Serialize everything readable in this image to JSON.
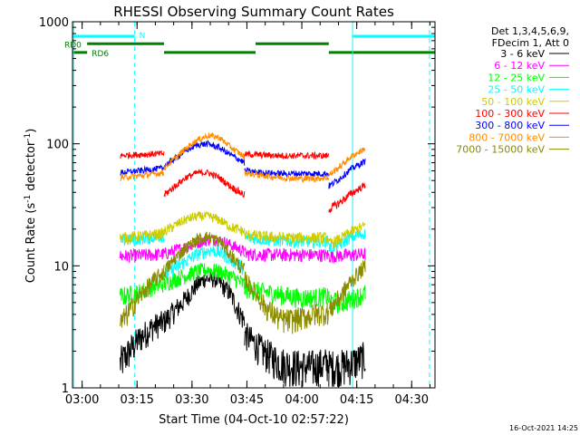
{
  "chart_data": {
    "type": "line",
    "title": "RHESSI Observing Summary Count Rates",
    "xlabel": "Start Time (04-Oct-10 02:57:22)",
    "ylabel": "Count Rate (s",
    "ylabel_sup1": "-1",
    "ylabel_mid": " detector",
    "ylabel_sup2": "-1",
    "ylabel_end": ")",
    "x_unit": "minutes since 02:57:22",
    "xlim": [
      0,
      99
    ],
    "ylim": [
      1,
      1000
    ],
    "yscale": "log",
    "x_tick_labels": [
      "03:00",
      "03:15",
      "03:30",
      "03:45",
      "04:00",
      "04:15",
      "04:30"
    ],
    "x_tick_values": [
      2.63,
      17.63,
      32.63,
      47.63,
      62.63,
      77.63,
      92.63
    ],
    "y_tick_labels": [
      "1",
      "10",
      "100",
      "1000"
    ],
    "y_tick_values": [
      1,
      10,
      100,
      1000
    ],
    "legend_placement": "right",
    "legend_header": [
      "Det 1,3,4,5,6,9,",
      "FDecim 1, Att 0"
    ],
    "series": [
      {
        "name": "3 - 6 keV",
        "color": "#000000",
        "segments": [
          {
            "x": [
              13,
              18,
              22,
              25
            ],
            "y": [
              1.6,
              2.5,
              3.2,
              3.5
            ]
          },
          {
            "x": [
              25,
              30,
              34,
              36,
              39,
              43,
              45,
              47
            ],
            "y": [
              3.5,
              5,
              7,
              7.8,
              7.8,
              6,
              4.5,
              3.5
            ]
          },
          {
            "x": [
              47,
              52,
              57,
              62,
              66,
              70
            ],
            "y": [
              2.8,
              2,
              1.6,
              1.5,
              1.5,
              1.6
            ]
          },
          {
            "x": [
              70,
              73,
              76,
              80
            ],
            "y": [
              1.5,
              1.5,
              1.6,
              1.8
            ]
          }
        ]
      },
      {
        "name": "6 - 12 keV",
        "color": "#ff00ff",
        "segments": [
          {
            "x": [
              13,
              25
            ],
            "y": [
              12,
              12.5
            ]
          },
          {
            "x": [
              25,
              30,
              35,
              38,
              41,
              45,
              47
            ],
            "y": [
              12.5,
              14,
              15.8,
              16.5,
              16,
              14,
              13
            ]
          },
          {
            "x": [
              47,
              57,
              70
            ],
            "y": [
              12.5,
              12.3,
              12.3
            ]
          },
          {
            "x": [
              70,
              80
            ],
            "y": [
              12,
              12.5
            ]
          }
        ]
      },
      {
        "name": "12 - 25 keV",
        "color": "#00ff00",
        "segments": [
          {
            "x": [
              13,
              18,
              22,
              25
            ],
            "y": [
              5.6,
              6,
              6.8,
              7.2
            ]
          },
          {
            "x": [
              25,
              30,
              34,
              37,
              40,
              44,
              47
            ],
            "y": [
              7.2,
              8.2,
              9,
              9.3,
              9,
              8,
              7
            ]
          },
          {
            "x": [
              47,
              52,
              57,
              62,
              66,
              70
            ],
            "y": [
              6.5,
              6.2,
              5.8,
              5.5,
              5.5,
              5.7
            ]
          },
          {
            "x": [
              70,
              73,
              76,
              80
            ],
            "y": [
              5.2,
              5,
              5.3,
              6
            ]
          }
        ]
      },
      {
        "name": "25 - 50 keV",
        "color": "#00ffff",
        "segments": [
          {
            "x": [
              13,
              18,
              22,
              25
            ],
            "y": [
              16,
              16.5,
              17,
              17.5
            ]
          },
          {
            "x": [
              25,
              30,
              34,
              38,
              40,
              44,
              47
            ],
            "y": [
              8.5,
              10.5,
              12.5,
              13.5,
              13,
              11,
              9.5
            ]
          },
          {
            "x": [
              47,
              52,
              57,
              62,
              66,
              70
            ],
            "y": [
              17,
              16.5,
              16,
              15.8,
              15.8,
              16
            ]
          },
          {
            "x": [
              70,
              73,
              76,
              80
            ],
            "y": [
              14,
              15,
              17,
              18.5
            ]
          }
        ]
      },
      {
        "name": "50 - 100 keV",
        "color": "#cccc00",
        "segments": [
          {
            "x": [
              13,
              18,
              22,
              25
            ],
            "y": [
              17,
              17.5,
              18,
              18.5
            ]
          },
          {
            "x": [
              25,
              28,
              31,
              34,
              37,
              40,
              43,
              47
            ],
            "y": [
              19,
              21.5,
              24,
              25.5,
              25.5,
              24,
              21,
              19
            ]
          },
          {
            "x": [
              47,
              52,
              57,
              62,
              66,
              70
            ],
            "y": [
              18,
              17.5,
              17,
              17,
              17,
              17
            ]
          },
          {
            "x": [
              70,
              73,
              76,
              80
            ],
            "y": [
              15,
              16.5,
              19,
              21.5
            ]
          }
        ]
      },
      {
        "name": "100 - 300 keV",
        "color": "#ff0000",
        "segments": [
          {
            "x": [
              13,
              16,
              20,
              25
            ],
            "y": [
              80,
              81,
              82,
              83
            ]
          },
          {
            "x": [
              25,
              28,
              31,
              34,
              37,
              40,
              43,
              47
            ],
            "y": [
              38,
              45,
              53,
              58,
              58,
              53,
              45,
              38
            ]
          },
          {
            "x": [
              47,
              52,
              57,
              62,
              66,
              70
            ],
            "y": [
              82,
              81,
              80,
              80,
              80,
              80
            ]
          },
          {
            "x": [
              70,
              73,
              76,
              80
            ],
            "y": [
              29,
              33,
              39,
              46
            ]
          }
        ]
      },
      {
        "name": "300 - 800 keV",
        "color": "#0000ff",
        "segments": [
          {
            "x": [
              13,
              18,
              22,
              25
            ],
            "y": [
              58,
              60,
              62,
              63
            ]
          },
          {
            "x": [
              25,
              28,
              31,
              34,
              37,
              40,
              43,
              47
            ],
            "y": [
              66,
              76,
              88,
              98,
              100,
              93,
              82,
              70
            ]
          },
          {
            "x": [
              47,
              52,
              57,
              62,
              66,
              70
            ],
            "y": [
              60,
              58,
              57,
              57,
              57,
              57
            ]
          },
          {
            "x": [
              70,
              73,
              76,
              80
            ],
            "y": [
              45,
              52,
              62,
              72
            ]
          }
        ]
      },
      {
        "name": "800 - 7000 keV",
        "color": "#ff8c00",
        "segments": [
          {
            "x": [
              13,
              18,
              22,
              25
            ],
            "y": [
              53,
              54.5,
              56.5,
              58
            ]
          },
          {
            "x": [
              25,
              28,
              31,
              34,
              37,
              40,
              43,
              47
            ],
            "y": [
              63,
              76,
              92,
              107,
              117,
              113,
              95,
              78
            ]
          },
          {
            "x": [
              47,
              52,
              57,
              62,
              66,
              70
            ],
            "y": [
              58,
              55,
              53,
              52,
              52,
              53
            ]
          },
          {
            "x": [
              70,
              73,
              76,
              80
            ],
            "y": [
              55,
              65,
              78,
              92
            ]
          }
        ]
      },
      {
        "name": "7000 - 15000 keV",
        "color": "#8b8b00",
        "segments": [
          {
            "x": [
              13,
              16,
              19,
              22,
              25
            ],
            "y": [
              3.3,
              4.5,
              6,
              7.5,
              9
            ]
          },
          {
            "x": [
              25,
              28,
              31,
              34,
              37,
              40,
              43,
              47
            ],
            "y": [
              9,
              11.5,
              14,
              16.5,
              17.5,
              16,
              12.5,
              9
            ]
          },
          {
            "x": [
              47,
              50,
              53,
              57,
              60,
              63,
              66,
              70
            ],
            "y": [
              8,
              6,
              4.5,
              3.6,
              3.6,
              3.8,
              4,
              4.2
            ]
          },
          {
            "x": [
              70,
              73,
              76,
              80
            ],
            "y": [
              4.3,
              5.5,
              7.5,
              10
            ]
          }
        ]
      }
    ],
    "vertical_lines": [
      {
        "x": 0.3,
        "color": "#00ffff",
        "style": "solid"
      },
      {
        "x": 17,
        "color": "#00ffff",
        "style": "dashed"
      },
      {
        "x": 76.5,
        "color": "#00ffff",
        "style": "solid"
      },
      {
        "x": 97.5,
        "color": "#00ffff",
        "style": "dashed"
      }
    ],
    "flag_bars": [
      {
        "name": "N",
        "color": "#00ffff",
        "y": 760,
        "segments": [
          [
            0,
            17
          ],
          [
            76.5,
            99
          ]
        ]
      },
      {
        "name": "RD0",
        "color": "#008000",
        "y": 660,
        "segments": [
          [
            4,
            25
          ],
          [
            50,
            70
          ]
        ]
      },
      {
        "name": "RD6",
        "color": "#008000",
        "y": 560,
        "segments": [
          [
            0,
            4
          ],
          [
            25,
            50
          ],
          [
            70,
            99
          ]
        ]
      }
    ]
  },
  "footer": {
    "timestamp": "16-Oct-2021 14:25"
  }
}
